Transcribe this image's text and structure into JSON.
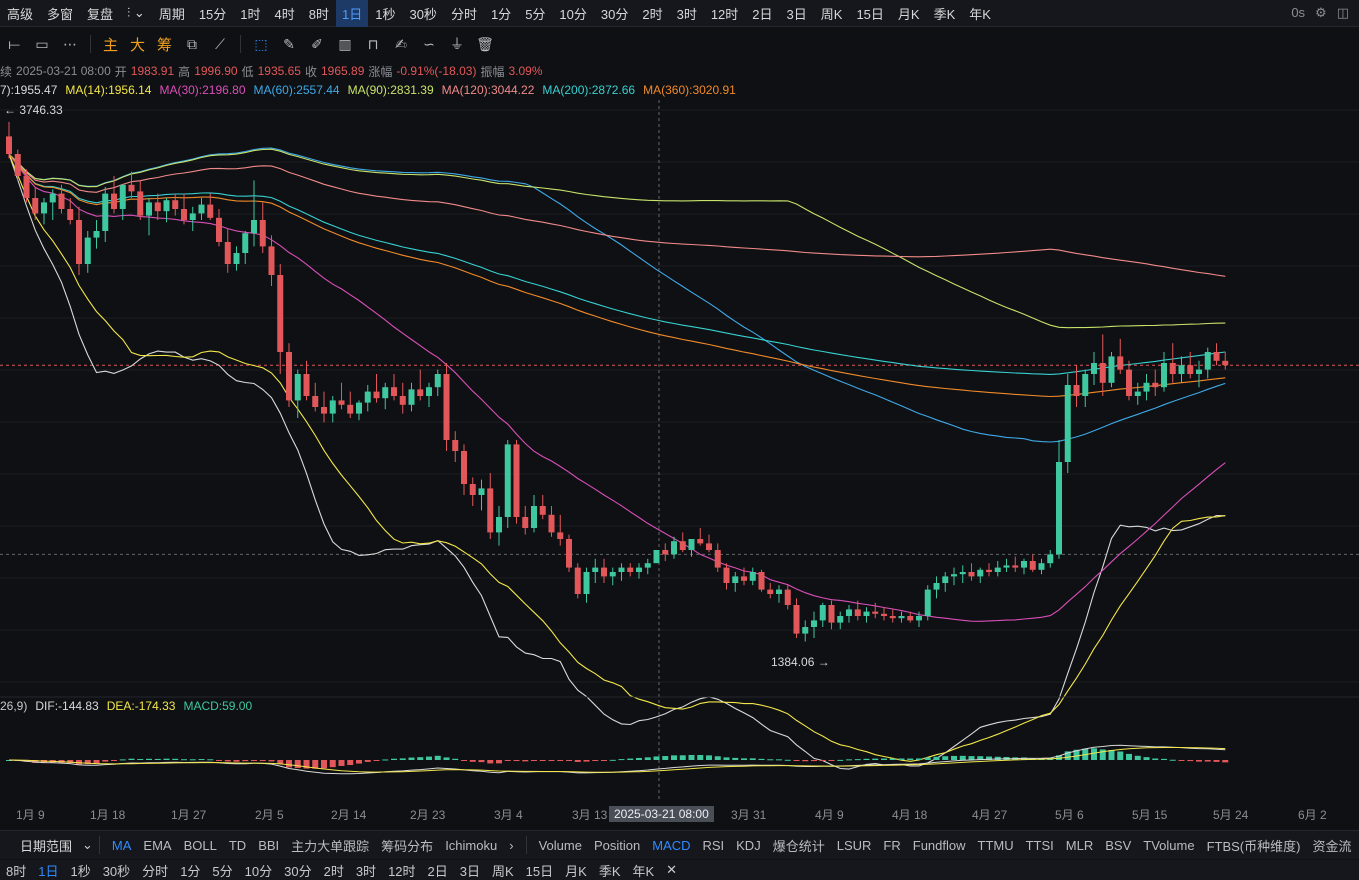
{
  "topbar": {
    "items": [
      "高级",
      "多窗",
      "复盘",
      "",
      "周期",
      "15分",
      "1时",
      "4时",
      "8时",
      "1日",
      "1秒",
      "30秒",
      "分时",
      "1分",
      "5分",
      "10分",
      "30分",
      "2时",
      "3时",
      "12时",
      "2日",
      "3日",
      "周K",
      "15日",
      "月K",
      "季K",
      "年K"
    ],
    "active_index": 9,
    "latency": "0s"
  },
  "toolbar": {
    "indicators": [
      "主",
      "大",
      "筹"
    ]
  },
  "ohlc": {
    "prefix": "续",
    "date": "2025-03-21 08:00",
    "open_label": "开",
    "open": "1983.91",
    "high_label": "高",
    "high": "1996.90",
    "low_label": "低",
    "low": "1935.65",
    "close_label": "收",
    "close": "1965.89",
    "change_label": "涨幅",
    "change": "-0.91%(-18.03)",
    "amp_label": "振幅",
    "amp": "3.09%"
  },
  "ma_legend": [
    {
      "text": "7):1955.47",
      "color": "#d9d9d9"
    },
    {
      "text": "MA(14):1956.14",
      "color": "#f2e64a"
    },
    {
      "text": "MA(30):2196.80",
      "color": "#d94fb8"
    },
    {
      "text": "MA(60):2557.44",
      "color": "#3fa9e8"
    },
    {
      "text": "MA(90):2831.39",
      "color": "#c7e36a"
    },
    {
      "text": "MA(120):3044.22",
      "color": "#f08a8a"
    },
    {
      "text": "MA(200):2872.66",
      "color": "#37d1d1"
    },
    {
      "text": "MA(360):3020.91",
      "color": "#f08a2a"
    }
  ],
  "macd_legend": {
    "params": "26,9)",
    "dif": "DIF:-144.83",
    "dea": "DEA:-174.33",
    "macd": "MACD:59.00"
  },
  "annotations": {
    "high_marker": "← 3746.33",
    "low_marker": "1384.06 →"
  },
  "x_axis": {
    "labels": [
      "1月 9",
      "1月 18",
      "1月 27",
      "2月 5",
      "2月 14",
      "2月 23",
      "3月 4",
      "3月 13",
      "3月 31",
      "4月 9",
      "4月 18",
      "4月 27",
      "5月 6",
      "5月 15",
      "5月 24",
      "6月 2"
    ],
    "crosshair_label": "2025-03-21 08:00"
  },
  "bottom_tabs": {
    "range": "日期范围",
    "main": [
      "MA",
      "EMA",
      "BOLL",
      "TD",
      "BBI",
      "主力大单跟踪",
      "筹码分布",
      "Ichimoku"
    ],
    "sub": [
      "Volume",
      "Position",
      "MACD",
      "RSI",
      "KDJ",
      "爆仓统计",
      "LSUR",
      "FR",
      "Fundflow",
      "TTMU",
      "TTSI",
      "MLR",
      "BSV",
      "TVolume",
      "FTBS(币种维度)",
      "资金流"
    ],
    "main_active": "MA",
    "sub_active": "MACD"
  },
  "bottom_periods": {
    "items": [
      "8时",
      "1日",
      "1秒",
      "30秒",
      "分时",
      "1分",
      "5分",
      "10分",
      "30分",
      "2时",
      "3时",
      "12时",
      "2日",
      "3日",
      "周K",
      "15日",
      "月K",
      "季K",
      "年K"
    ],
    "active": "1日"
  },
  "colors": {
    "up": "#3fc7a0",
    "down": "#e2585a",
    "bg": "#0f1013"
  },
  "chart_data": {
    "type": "candlestick",
    "title": "",
    "x_range": [
      "2025-01-04",
      "2025-05-30"
    ],
    "y_range": [
      1300,
      3800
    ],
    "ohlc": [
      [
        3680,
        3746,
        3580,
        3600
      ],
      [
        3600,
        3620,
        3480,
        3500
      ],
      [
        3500,
        3530,
        3380,
        3400
      ],
      [
        3400,
        3450,
        3300,
        3330
      ],
      [
        3330,
        3400,
        3280,
        3380
      ],
      [
        3380,
        3440,
        3300,
        3420
      ],
      [
        3420,
        3460,
        3330,
        3350
      ],
      [
        3350,
        3400,
        3280,
        3300
      ],
      [
        3300,
        3360,
        3050,
        3100
      ],
      [
        3100,
        3250,
        3060,
        3220
      ],
      [
        3220,
        3300,
        3170,
        3250
      ],
      [
        3250,
        3450,
        3200,
        3420
      ],
      [
        3420,
        3500,
        3330,
        3350
      ],
      [
        3350,
        3460,
        3300,
        3460
      ],
      [
        3460,
        3520,
        3400,
        3430
      ],
      [
        3430,
        3480,
        3300,
        3320
      ],
      [
        3320,
        3400,
        3230,
        3380
      ],
      [
        3380,
        3420,
        3300,
        3340
      ],
      [
        3340,
        3400,
        3290,
        3390
      ],
      [
        3390,
        3420,
        3320,
        3350
      ],
      [
        3350,
        3420,
        3280,
        3300
      ],
      [
        3300,
        3360,
        3250,
        3330
      ],
      [
        3330,
        3400,
        3300,
        3370
      ],
      [
        3370,
        3420,
        3300,
        3310
      ],
      [
        3310,
        3350,
        3180,
        3200
      ],
      [
        3200,
        3260,
        3060,
        3100
      ],
      [
        3100,
        3180,
        3070,
        3150
      ],
      [
        3150,
        3250,
        3100,
        3240
      ],
      [
        3240,
        3480,
        3180,
        3300
      ],
      [
        3300,
        3380,
        3150,
        3180
      ],
      [
        3180,
        3230,
        3000,
        3050
      ],
      [
        3050,
        3100,
        2600,
        2700
      ],
      [
        2700,
        2740,
        2450,
        2480
      ],
      [
        2480,
        2620,
        2400,
        2600
      ],
      [
        2600,
        2660,
        2480,
        2500
      ],
      [
        2500,
        2560,
        2430,
        2450
      ],
      [
        2450,
        2520,
        2380,
        2420
      ],
      [
        2420,
        2500,
        2380,
        2480
      ],
      [
        2480,
        2560,
        2440,
        2460
      ],
      [
        2460,
        2520,
        2400,
        2420
      ],
      [
        2420,
        2480,
        2390,
        2470
      ],
      [
        2470,
        2550,
        2430,
        2520
      ],
      [
        2520,
        2600,
        2470,
        2490
      ],
      [
        2490,
        2560,
        2440,
        2540
      ],
      [
        2540,
        2600,
        2480,
        2500
      ],
      [
        2500,
        2560,
        2420,
        2460
      ],
      [
        2460,
        2560,
        2430,
        2530
      ],
      [
        2530,
        2620,
        2480,
        2500
      ],
      [
        2500,
        2560,
        2450,
        2540
      ],
      [
        2540,
        2620,
        2500,
        2600
      ],
      [
        2600,
        2650,
        2250,
        2300
      ],
      [
        2300,
        2340,
        2200,
        2250
      ],
      [
        2250,
        2280,
        2050,
        2100
      ],
      [
        2100,
        2130,
        2000,
        2050
      ],
      [
        2050,
        2120,
        1980,
        2080
      ],
      [
        2080,
        2150,
        1850,
        1880
      ],
      [
        1880,
        2000,
        1820,
        1950
      ],
      [
        1950,
        2300,
        1900,
        2280
      ],
      [
        2280,
        2300,
        1920,
        1950
      ],
      [
        1950,
        2000,
        1870,
        1900
      ],
      [
        1900,
        2050,
        1880,
        2000
      ],
      [
        2000,
        2050,
        1940,
        1960
      ],
      [
        1960,
        2000,
        1860,
        1880
      ],
      [
        1880,
        1960,
        1820,
        1850
      ],
      [
        1850,
        1870,
        1700,
        1720
      ],
      [
        1720,
        1740,
        1580,
        1600
      ],
      [
        1600,
        1720,
        1560,
        1700
      ],
      [
        1700,
        1760,
        1650,
        1720
      ],
      [
        1720,
        1760,
        1650,
        1680
      ],
      [
        1680,
        1720,
        1640,
        1700
      ],
      [
        1700,
        1740,
        1660,
        1720
      ],
      [
        1720,
        1740,
        1680,
        1700
      ],
      [
        1700,
        1740,
        1670,
        1720
      ],
      [
        1720,
        1760,
        1690,
        1740
      ],
      [
        1740,
        1800,
        1760,
        1800
      ],
      [
        1800,
        1830,
        1750,
        1780
      ],
      [
        1780,
        1860,
        1760,
        1840
      ],
      [
        1840,
        1880,
        1790,
        1800
      ],
      [
        1800,
        1850,
        1770,
        1850
      ],
      [
        1850,
        1900,
        1820,
        1830
      ],
      [
        1830,
        1870,
        1790,
        1800
      ],
      [
        1800,
        1830,
        1700,
        1720
      ],
      [
        1720,
        1740,
        1620,
        1650
      ],
      [
        1650,
        1700,
        1610,
        1680
      ],
      [
        1680,
        1720,
        1640,
        1660
      ],
      [
        1660,
        1720,
        1640,
        1700
      ],
      [
        1700,
        1710,
        1610,
        1620
      ],
      [
        1620,
        1650,
        1580,
        1600
      ],
      [
        1600,
        1640,
        1560,
        1620
      ],
      [
        1620,
        1640,
        1530,
        1550
      ],
      [
        1550,
        1580,
        1400,
        1420
      ],
      [
        1420,
        1480,
        1384,
        1450
      ],
      [
        1450,
        1520,
        1400,
        1480
      ],
      [
        1480,
        1560,
        1450,
        1550
      ],
      [
        1550,
        1570,
        1440,
        1470
      ],
      [
        1470,
        1520,
        1440,
        1500
      ],
      [
        1500,
        1550,
        1470,
        1530
      ],
      [
        1530,
        1570,
        1480,
        1500
      ],
      [
        1500,
        1540,
        1470,
        1520
      ],
      [
        1520,
        1560,
        1490,
        1510
      ],
      [
        1510,
        1540,
        1480,
        1500
      ],
      [
        1500,
        1530,
        1470,
        1490
      ],
      [
        1490,
        1520,
        1470,
        1500
      ],
      [
        1500,
        1520,
        1470,
        1480
      ],
      [
        1480,
        1520,
        1450,
        1500
      ],
      [
        1500,
        1640,
        1480,
        1620
      ],
      [
        1620,
        1680,
        1580,
        1650
      ],
      [
        1650,
        1700,
        1610,
        1680
      ],
      [
        1680,
        1720,
        1640,
        1690
      ],
      [
        1690,
        1730,
        1650,
        1700
      ],
      [
        1700,
        1740,
        1660,
        1680
      ],
      [
        1680,
        1720,
        1650,
        1710
      ],
      [
        1710,
        1740,
        1680,
        1700
      ],
      [
        1700,
        1750,
        1680,
        1720
      ],
      [
        1720,
        1760,
        1700,
        1730
      ],
      [
        1730,
        1770,
        1700,
        1720
      ],
      [
        1720,
        1760,
        1690,
        1750
      ],
      [
        1750,
        1780,
        1700,
        1710
      ],
      [
        1710,
        1760,
        1690,
        1740
      ],
      [
        1740,
        1800,
        1720,
        1780
      ],
      [
        1780,
        2300,
        1760,
        2200
      ],
      [
        2200,
        2600,
        2150,
        2550
      ],
      [
        2550,
        2640,
        2450,
        2500
      ],
      [
        2500,
        2620,
        2450,
        2600
      ],
      [
        2600,
        2700,
        2550,
        2650
      ],
      [
        2650,
        2780,
        2500,
        2560
      ],
      [
        2560,
        2700,
        2540,
        2680
      ],
      [
        2680,
        2760,
        2600,
        2620
      ],
      [
        2620,
        2660,
        2480,
        2500
      ],
      [
        2500,
        2560,
        2460,
        2520
      ],
      [
        2520,
        2600,
        2480,
        2560
      ],
      [
        2560,
        2620,
        2500,
        2540
      ],
      [
        2540,
        2700,
        2520,
        2650
      ],
      [
        2650,
        2740,
        2560,
        2600
      ],
      [
        2600,
        2680,
        2560,
        2640
      ],
      [
        2640,
        2700,
        2580,
        2600
      ],
      [
        2600,
        2660,
        2540,
        2620
      ],
      [
        2620,
        2720,
        2580,
        2700
      ],
      [
        2700,
        2740,
        2640,
        2660
      ],
      [
        2660,
        2700,
        2620,
        2640
      ]
    ]
  }
}
